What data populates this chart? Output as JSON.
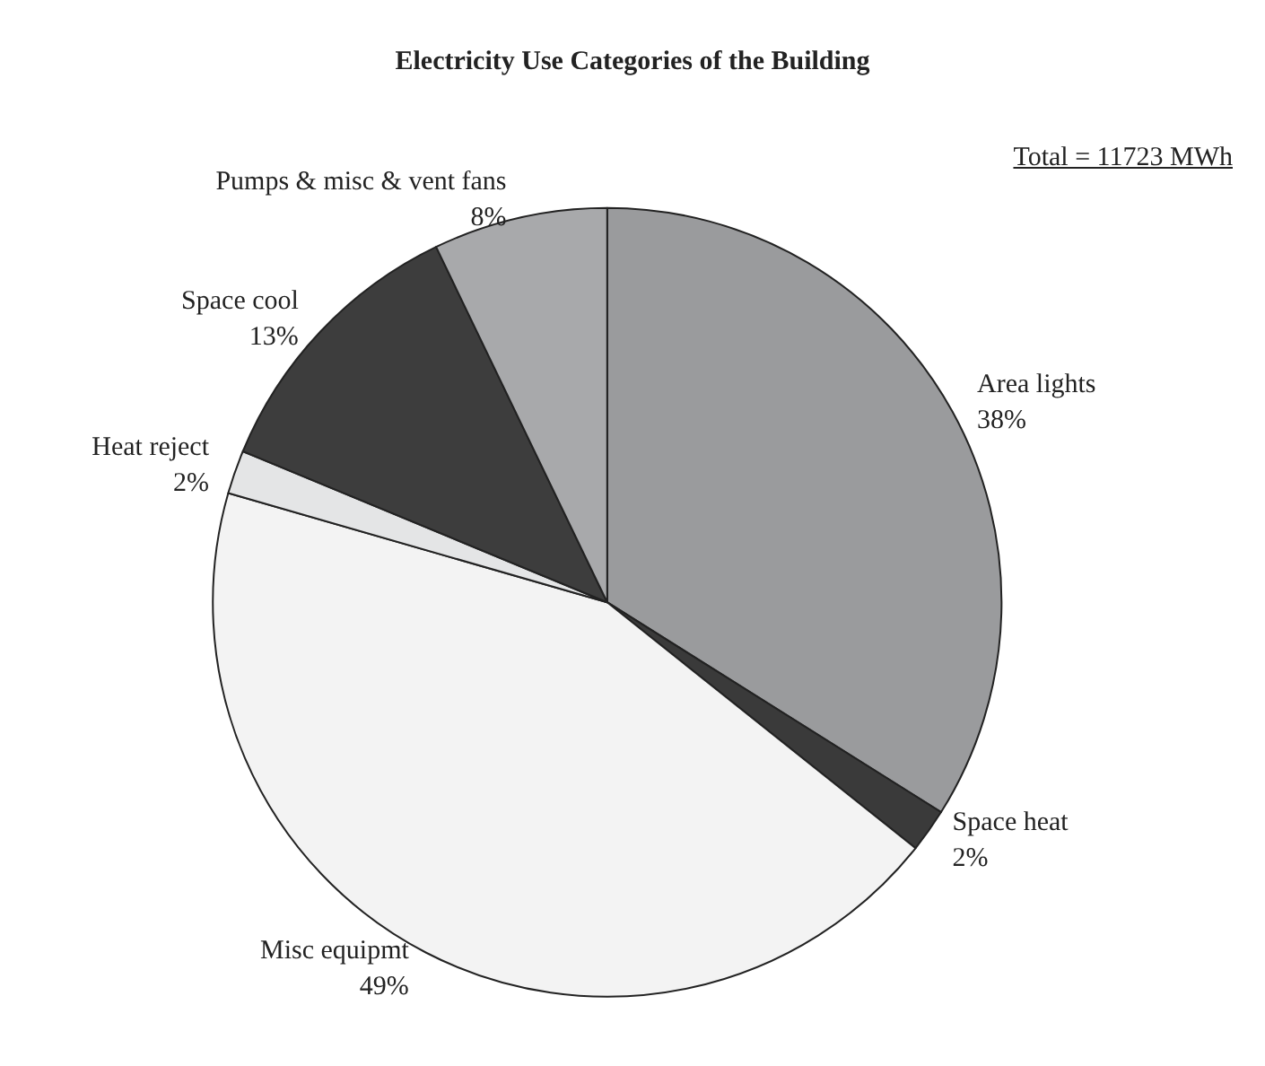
{
  "chart_data": {
    "type": "pie",
    "title": "Electricity Use Categories of the Building",
    "categories": [
      "Area lights",
      "Space heat",
      "Misc equipmt",
      "Heat reject",
      "Space cool",
      "Pumps & misc & vent fans"
    ],
    "values": [
      38,
      2,
      49,
      2,
      13,
      8
    ],
    "value_labels": [
      "38%",
      "2%",
      "49%",
      "2%",
      "13%",
      "8%"
    ],
    "colors": [
      "#9a9b9d",
      "#3a3a3a",
      "#f3f3f3",
      "#e4e5e6",
      "#3d3d3d",
      "#a8a9ab"
    ],
    "annotations": [
      "Total = 11723 MWh"
    ],
    "legend": false
  }
}
